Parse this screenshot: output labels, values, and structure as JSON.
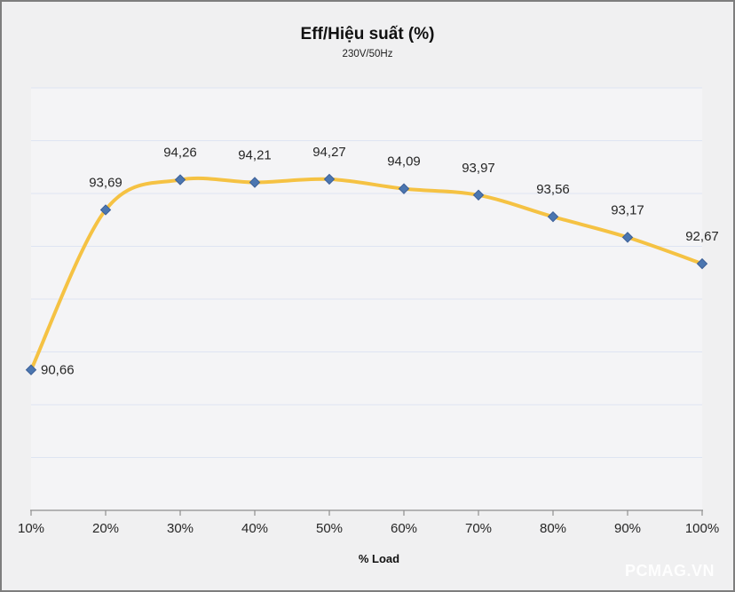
{
  "chart_data": {
    "type": "line",
    "title": "Eff/Hiệu suất (%)",
    "subtitle": "230V/50Hz",
    "xlabel": "% Load",
    "ylabel": "",
    "categories": [
      "10%",
      "20%",
      "30%",
      "40%",
      "50%",
      "60%",
      "70%",
      "80%",
      "90%",
      "100%"
    ],
    "series": [
      {
        "name": "Eff/Hiệu suất (%)",
        "values": [
          90.66,
          93.69,
          94.26,
          94.21,
          94.27,
          94.09,
          93.97,
          93.56,
          93.17,
          92.67
        ],
        "point_labels": [
          "90,66",
          "93,69",
          "94,26",
          "94,21",
          "94,27",
          "94,09",
          "93,97",
          "93,56",
          "93,17",
          "92,67"
        ]
      }
    ],
    "ylim": [
      88,
      96
    ],
    "y_major_unit": 1,
    "y_tick_labels_visible": false,
    "grid": "horizontal",
    "legend": "none",
    "line_style": "smooth",
    "marker": "diamond",
    "colors": {
      "line": "#f5c243",
      "marker_fill": "#4b76b0",
      "marker_stroke": "#3c5f97",
      "gridline": "#dee4f2",
      "axis": "#8e8e8e",
      "data_label_text": "#262626",
      "tick_label_text": "#262626",
      "chart_background": "#f0f0f1",
      "plot_background": "#f4f4f6"
    }
  },
  "watermark": "PCMAG.VN"
}
